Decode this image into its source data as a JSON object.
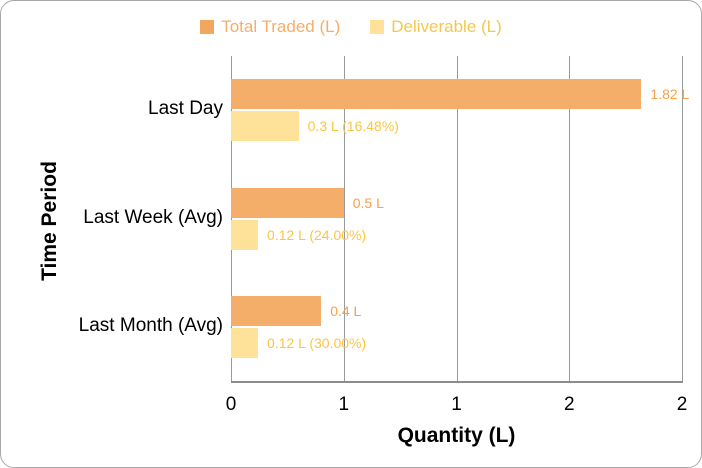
{
  "legend": {
    "items": [
      {
        "label": "Total Traded (L)",
        "swatch_color": "#F2A75F",
        "text_color": "#F5AE6A"
      },
      {
        "label": "Deliverable (L)",
        "swatch_color": "#FFE199",
        "text_color": "#F2C94C"
      }
    ]
  },
  "chart_data": {
    "type": "bar",
    "orientation": "horizontal",
    "title": "",
    "xlabel": "Quantity (L)",
    "ylabel": "Time Period",
    "xlim": [
      0,
      2
    ],
    "x_ticks": [
      0,
      0.5,
      1,
      1.5,
      2
    ],
    "x_tick_labels": [
      "0",
      "1",
      "1",
      "2",
      "2"
    ],
    "grid": true,
    "legend_position": "top-center",
    "categories": [
      "Last Day",
      "Last Week (Avg)",
      "Last Month (Avg)"
    ],
    "series": [
      {
        "name": "Total Traded (L)",
        "values": [
          1.82,
          0.5,
          0.4
        ],
        "labels": [
          "1.82 L",
          "0.5 L",
          "0.4 L"
        ],
        "bar_color": "#F5AE6A",
        "label_color": "#F7A046"
      },
      {
        "name": "Deliverable (L)",
        "values": [
          0.3,
          0.12,
          0.12
        ],
        "labels": [
          "0.3 L (16.48%)",
          "0.12 L (24.00%)",
          "0.12 L (30.00%)"
        ],
        "bar_color": "#FFE29A",
        "label_color": "#FBC542"
      }
    ]
  }
}
